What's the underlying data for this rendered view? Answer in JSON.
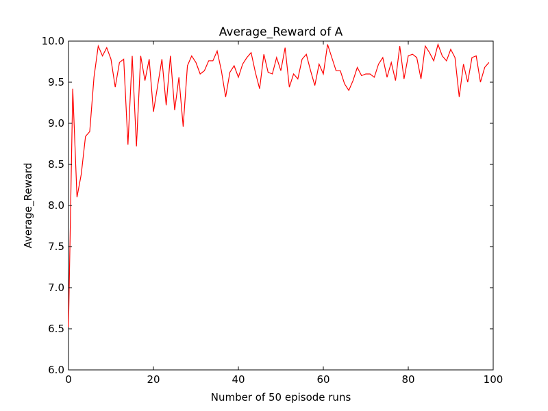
{
  "chart_data": {
    "type": "line",
    "title": "Average_Reward of A",
    "xlabel": "Number of 50 episode runs",
    "ylabel": "Average_Reward",
    "xlim": [
      0,
      100
    ],
    "ylim": [
      6.0,
      10.0
    ],
    "xticks": [
      0,
      20,
      40,
      60,
      80,
      100
    ],
    "xtick_labels": [
      "0",
      "20",
      "40",
      "60",
      "80",
      "100"
    ],
    "yticks": [
      6.0,
      6.5,
      7.0,
      7.5,
      8.0,
      8.5,
      9.0,
      9.5,
      10.0
    ],
    "ytick_labels": [
      "6.0",
      "6.5",
      "7.0",
      "7.5",
      "8.0",
      "8.5",
      "9.0",
      "9.5",
      "10.0"
    ],
    "grid": false,
    "series": [
      {
        "color": "#ff0000",
        "x": [
          0,
          1,
          2,
          3,
          4,
          5,
          6,
          7,
          8,
          9,
          10,
          11,
          12,
          13,
          14,
          15,
          16,
          17,
          18,
          19,
          20,
          21,
          22,
          23,
          24,
          25,
          26,
          27,
          28,
          29,
          30,
          31,
          32,
          33,
          34,
          35,
          36,
          37,
          38,
          39,
          40,
          41,
          42,
          43,
          44,
          45,
          46,
          47,
          48,
          49,
          50,
          51,
          52,
          53,
          54,
          55,
          56,
          57,
          58,
          59,
          60,
          61,
          62,
          63,
          64,
          65,
          66,
          67,
          68,
          69,
          70,
          71,
          72,
          73,
          74,
          75,
          76,
          77,
          78,
          79,
          80,
          81,
          82,
          83,
          84,
          85,
          86,
          87,
          88,
          89,
          90,
          91,
          92,
          93,
          94,
          95,
          96,
          97,
          98,
          99
        ],
        "y": [
          6.52,
          9.42,
          8.1,
          8.38,
          8.84,
          8.9,
          9.56,
          9.94,
          9.82,
          9.92,
          9.78,
          9.44,
          9.74,
          9.78,
          8.74,
          9.82,
          8.72,
          9.82,
          9.52,
          9.78,
          9.14,
          9.46,
          9.78,
          9.22,
          9.82,
          9.16,
          9.56,
          8.96,
          9.7,
          9.82,
          9.74,
          9.6,
          9.64,
          9.76,
          9.76,
          9.88,
          9.64,
          9.32,
          9.62,
          9.7,
          9.56,
          9.72,
          9.8,
          9.86,
          9.62,
          9.42,
          9.84,
          9.62,
          9.6,
          9.8,
          9.64,
          9.92,
          9.44,
          9.6,
          9.54,
          9.78,
          9.84,
          9.64,
          9.46,
          9.72,
          9.6,
          9.96,
          9.8,
          9.64,
          9.64,
          9.48,
          9.4,
          9.52,
          9.68,
          9.58,
          9.6,
          9.6,
          9.56,
          9.72,
          9.8,
          9.56,
          9.74,
          9.52,
          9.94,
          9.54,
          9.82,
          9.84,
          9.8,
          9.54,
          9.94,
          9.86,
          9.76,
          9.96,
          9.82,
          9.76,
          9.9,
          9.8,
          9.32,
          9.72,
          9.5,
          9.8,
          9.82,
          9.5,
          9.68,
          9.74
        ]
      }
    ]
  }
}
